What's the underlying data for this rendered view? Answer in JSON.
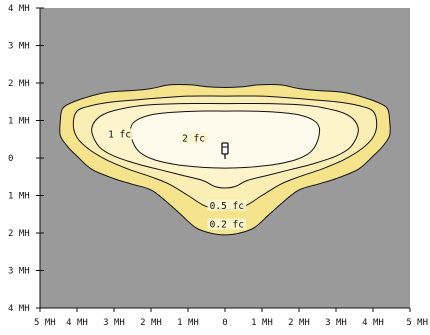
{
  "chart_data": {
    "type": "contour",
    "title": "",
    "xlabel": "",
    "ylabel": "",
    "x_ticks": [
      "5 MH",
      "4 MH",
      "3 MH",
      "2 MH",
      "1 MH",
      "0",
      "1 MH",
      "2 MH",
      "3 MH",
      "4 MH",
      "5 MH"
    ],
    "y_ticks": [
      "4 MH",
      "3 MH",
      "2 MH",
      "1 MH",
      "0",
      "1 MH",
      "2 MH",
      "3 MH",
      "4 MH"
    ],
    "xlim": [
      -5,
      5
    ],
    "ylim": [
      -4,
      4
    ],
    "grid": false,
    "luminaire_position": [
      0,
      0
    ],
    "contours": [
      {
        "label": "0.2 fc",
        "fill": "#f6e48c",
        "points": [
          [
            -4.4,
            1.3
          ],
          [
            -4.2,
            1.45
          ],
          [
            -3.8,
            1.6
          ],
          [
            -3.2,
            1.75
          ],
          [
            -2.5,
            1.8
          ],
          [
            -2.0,
            1.85
          ],
          [
            -1.5,
            1.95
          ],
          [
            -0.9,
            1.95
          ],
          [
            -0.5,
            1.9
          ],
          [
            0.0,
            1.88
          ],
          [
            0.5,
            1.9
          ],
          [
            0.9,
            1.95
          ],
          [
            1.5,
            1.95
          ],
          [
            2.0,
            1.85
          ],
          [
            2.5,
            1.8
          ],
          [
            3.2,
            1.75
          ],
          [
            3.8,
            1.6
          ],
          [
            4.2,
            1.45
          ],
          [
            4.4,
            1.3
          ],
          [
            4.45,
            1.0
          ],
          [
            4.45,
            0.6
          ],
          [
            4.25,
            0.3
          ],
          [
            4.0,
            0.05
          ],
          [
            3.6,
            -0.3
          ],
          [
            3.0,
            -0.55
          ],
          [
            2.5,
            -0.7
          ],
          [
            2.0,
            -0.85
          ],
          [
            1.6,
            -1.15
          ],
          [
            1.2,
            -1.5
          ],
          [
            0.8,
            -1.85
          ],
          [
            0.4,
            -2.0
          ],
          [
            0.0,
            -2.05
          ],
          [
            -0.4,
            -2.0
          ],
          [
            -0.8,
            -1.85
          ],
          [
            -1.2,
            -1.5
          ],
          [
            -1.6,
            -1.15
          ],
          [
            -2.0,
            -0.85
          ],
          [
            -2.5,
            -0.7
          ],
          [
            -3.0,
            -0.55
          ],
          [
            -3.6,
            -0.3
          ],
          [
            -4.0,
            0.05
          ],
          [
            -4.25,
            0.3
          ],
          [
            -4.45,
            0.6
          ],
          [
            -4.45,
            1.0
          ]
        ]
      },
      {
        "label": "0.5 fc",
        "fill": "#fbeeb4",
        "points": [
          [
            -4.0,
            1.25
          ],
          [
            -3.6,
            1.4
          ],
          [
            -3.0,
            1.5
          ],
          [
            -2.4,
            1.55
          ],
          [
            -1.8,
            1.6
          ],
          [
            -1.0,
            1.65
          ],
          [
            0.0,
            1.65
          ],
          [
            1.0,
            1.65
          ],
          [
            1.8,
            1.6
          ],
          [
            2.4,
            1.55
          ],
          [
            3.0,
            1.5
          ],
          [
            3.6,
            1.4
          ],
          [
            4.0,
            1.25
          ],
          [
            4.1,
            0.9
          ],
          [
            4.0,
            0.55
          ],
          [
            3.7,
            0.25
          ],
          [
            3.2,
            -0.05
          ],
          [
            2.6,
            -0.3
          ],
          [
            2.0,
            -0.5
          ],
          [
            1.5,
            -0.7
          ],
          [
            1.0,
            -1.0
          ],
          [
            0.6,
            -1.25
          ],
          [
            0.3,
            -1.35
          ],
          [
            0.0,
            -1.38
          ],
          [
            -0.3,
            -1.35
          ],
          [
            -0.6,
            -1.25
          ],
          [
            -1.0,
            -1.0
          ],
          [
            -1.5,
            -0.7
          ],
          [
            -2.0,
            -0.5
          ],
          [
            -2.6,
            -0.3
          ],
          [
            -3.2,
            -0.05
          ],
          [
            -3.7,
            0.25
          ],
          [
            -4.0,
            0.55
          ],
          [
            -4.1,
            0.9
          ]
        ]
      },
      {
        "label": "1 fc",
        "fill": "#fdf4cc",
        "points": [
          [
            -3.5,
            1.0
          ],
          [
            -3.2,
            1.2
          ],
          [
            -2.6,
            1.35
          ],
          [
            -2.0,
            1.42
          ],
          [
            -1.2,
            1.45
          ],
          [
            0.0,
            1.45
          ],
          [
            1.2,
            1.45
          ],
          [
            2.0,
            1.42
          ],
          [
            2.6,
            1.35
          ],
          [
            3.2,
            1.2
          ],
          [
            3.5,
            1.0
          ],
          [
            3.6,
            0.7
          ],
          [
            3.4,
            0.3
          ],
          [
            3.0,
            0.05
          ],
          [
            2.4,
            -0.15
          ],
          [
            1.8,
            -0.3
          ],
          [
            1.2,
            -0.45
          ],
          [
            0.6,
            -0.6
          ],
          [
            0.3,
            -0.75
          ],
          [
            0.0,
            -0.8
          ],
          [
            -0.3,
            -0.75
          ],
          [
            -0.6,
            -0.6
          ],
          [
            -1.2,
            -0.45
          ],
          [
            -1.8,
            -0.3
          ],
          [
            -2.4,
            -0.15
          ],
          [
            -3.0,
            0.05
          ],
          [
            -3.4,
            0.3
          ],
          [
            -3.6,
            0.7
          ]
        ]
      },
      {
        "label": "2 fc",
        "fill": "#fefbec",
        "points": [
          [
            -2.4,
            1.0
          ],
          [
            -2.0,
            1.15
          ],
          [
            -1.4,
            1.22
          ],
          [
            -0.7,
            1.25
          ],
          [
            0.0,
            1.25
          ],
          [
            0.7,
            1.25
          ],
          [
            1.4,
            1.22
          ],
          [
            2.0,
            1.15
          ],
          [
            2.4,
            1.0
          ],
          [
            2.55,
            0.8
          ],
          [
            2.5,
            0.45
          ],
          [
            2.3,
            0.15
          ],
          [
            1.9,
            -0.05
          ],
          [
            1.3,
            -0.18
          ],
          [
            0.6,
            -0.25
          ],
          [
            0.0,
            -0.27
          ],
          [
            -0.6,
            -0.25
          ],
          [
            -1.3,
            -0.18
          ],
          [
            -1.9,
            -0.05
          ],
          [
            -2.3,
            0.15
          ],
          [
            -2.5,
            0.45
          ],
          [
            -2.55,
            0.8
          ]
        ]
      }
    ],
    "contour_label_positions": [
      {
        "text": "1 fc",
        "x": -2.85,
        "y": 0.6
      },
      {
        "text": "2 fc",
        "x": -0.85,
        "y": 0.5
      },
      {
        "text": "0.5 fc",
        "x": 0.05,
        "y": -1.3
      },
      {
        "text": "0.2 fc",
        "x": 0.05,
        "y": -1.8
      }
    ]
  }
}
